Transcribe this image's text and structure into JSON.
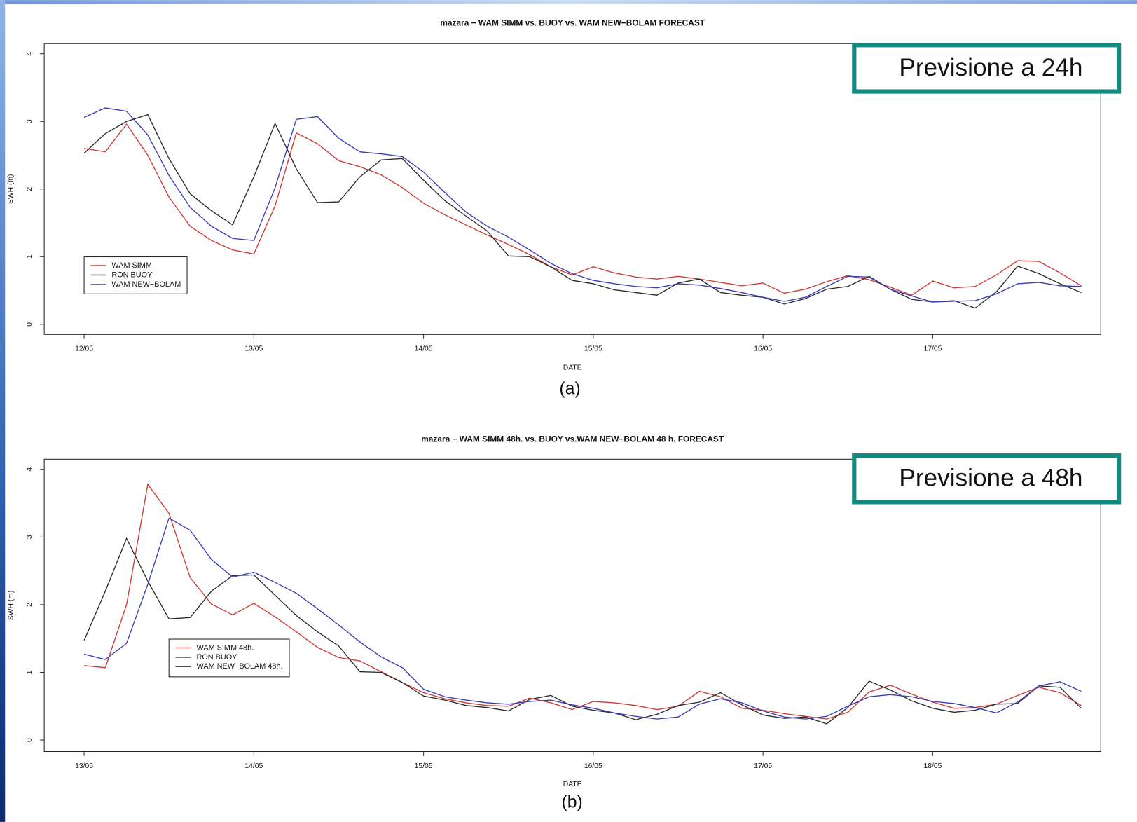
{
  "chart_data": [
    {
      "type": "line",
      "title": "mazara − WAM SIMM  vs. BUOY vs. WAM NEW−BOLAM FORECAST",
      "xlabel": "DATE",
      "ylabel": "SWH (m)",
      "annotation": "Previsione a 24h",
      "caption": "(a)",
      "x": [
        0,
        0.125,
        0.25,
        0.375,
        0.5,
        0.625,
        0.75,
        0.875,
        1,
        1.125,
        1.25,
        1.375,
        1.5,
        1.625,
        1.75,
        1.875,
        2,
        2.125,
        2.25,
        2.375,
        2.5,
        2.625,
        2.75,
        2.875,
        3,
        3.125,
        3.25,
        3.375,
        3.5,
        3.625,
        3.75,
        3.875,
        4,
        4.125,
        4.25,
        4.375,
        4.5,
        4.625,
        4.75,
        4.875,
        5,
        5.125,
        5.25,
        5.375,
        5.5,
        5.625,
        5.75,
        5.875
      ],
      "xlim": [
        -0.235,
        5.99
      ],
      "xticks": [
        {
          "value": 0,
          "label": "12/05"
        },
        {
          "value": 1,
          "label": "13/05"
        },
        {
          "value": 2,
          "label": "14/05"
        },
        {
          "value": 3,
          "label": "15/05"
        },
        {
          "value": 4,
          "label": "16/05"
        },
        {
          "value": 5,
          "label": "17/05"
        }
      ],
      "ylim": [
        -0.15,
        4.15
      ],
      "yticks": [
        0,
        1,
        2,
        3,
        4
      ],
      "legend": "left",
      "series": [
        {
          "name": "WAM SIMM",
          "color": "#cc3a35",
          "values": [
            2.6,
            2.55,
            2.96,
            2.5,
            1.88,
            1.45,
            1.24,
            1.1,
            1.04,
            1.75,
            2.83,
            2.67,
            2.42,
            2.33,
            2.21,
            2.02,
            1.79,
            1.62,
            1.47,
            1.32,
            1.18,
            1.03,
            0.85,
            0.73,
            0.85,
            0.76,
            0.7,
            0.67,
            0.71,
            0.67,
            0.62,
            0.57,
            0.61,
            0.46,
            0.52,
            0.63,
            0.72,
            0.66,
            0.55,
            0.43,
            0.64,
            0.54,
            0.56,
            0.73,
            0.94,
            0.93,
            0.76,
            0.57
          ]
        },
        {
          "name": "RON BUOY",
          "color": "#2b2b2b",
          "values": [
            2.53,
            2.82,
            3.0,
            3.1,
            2.45,
            1.93,
            1.68,
            1.47,
            2.18,
            2.97,
            2.3,
            1.8,
            1.81,
            2.18,
            2.43,
            2.45,
            2.13,
            1.83,
            1.6,
            1.38,
            1.01,
            1.0,
            0.85,
            0.65,
            0.6,
            0.51,
            0.47,
            0.43,
            0.61,
            0.67,
            0.47,
            0.43,
            0.4,
            0.3,
            0.38,
            0.52,
            0.56,
            0.71,
            0.52,
            0.37,
            0.33,
            0.35,
            0.24,
            0.48,
            0.86,
            0.75,
            0.6,
            0.47
          ]
        },
        {
          "name": "WAM NEW−BOLAM",
          "color": "#3a3ab5",
          "values": [
            3.06,
            3.2,
            3.15,
            2.8,
            2.2,
            1.73,
            1.45,
            1.27,
            1.24,
            2.02,
            3.03,
            3.07,
            2.75,
            2.55,
            2.52,
            2.48,
            2.25,
            1.95,
            1.66,
            1.45,
            1.29,
            1.1,
            0.9,
            0.75,
            0.65,
            0.6,
            0.56,
            0.54,
            0.6,
            0.58,
            0.53,
            0.47,
            0.4,
            0.34,
            0.4,
            0.56,
            0.71,
            0.7,
            0.52,
            0.42,
            0.33,
            0.34,
            0.35,
            0.45,
            0.6,
            0.62,
            0.57,
            0.56
          ]
        }
      ]
    },
    {
      "type": "line",
      "title": "mazara − WAM SIMM 48h. vs. BUOY vs.WAM NEW−BOLAM 48 h. FORECAST",
      "xlabel": "DATE",
      "ylabel": "SWH (m)",
      "annotation": "Previsione a 48h",
      "caption": "(b)",
      "x": [
        0,
        0.125,
        0.25,
        0.375,
        0.5,
        0.625,
        0.75,
        0.875,
        1,
        1.125,
        1.25,
        1.375,
        1.5,
        1.625,
        1.75,
        1.875,
        2,
        2.125,
        2.25,
        2.375,
        2.5,
        2.625,
        2.75,
        2.875,
        3,
        3.125,
        3.25,
        3.375,
        3.5,
        3.625,
        3.75,
        3.875,
        4,
        4.125,
        4.25,
        4.375,
        4.5,
        4.625,
        4.75,
        4.875,
        5,
        5.125,
        5.25,
        5.375,
        5.5,
        5.625,
        5.75,
        5.875
      ],
      "xlim": [
        -0.235,
        5.99
      ],
      "xticks": [
        {
          "value": 0,
          "label": "13/05"
        },
        {
          "value": 1,
          "label": "14/05"
        },
        {
          "value": 2,
          "label": "15/05"
        },
        {
          "value": 3,
          "label": "16/05"
        },
        {
          "value": 4,
          "label": "17/05"
        },
        {
          "value": 5,
          "label": "18/05"
        }
      ],
      "ylim": [
        -0.17,
        4.15
      ],
      "yticks": [
        0,
        1,
        2,
        3,
        4
      ],
      "legend": "left",
      "series": [
        {
          "name": "WAM SIMM 48h.",
          "color": "#cc3a35",
          "values": [
            1.1,
            1.07,
            2.0,
            3.78,
            3.35,
            2.4,
            2.01,
            1.85,
            2.02,
            1.82,
            1.6,
            1.37,
            1.22,
            1.17,
            1.01,
            0.85,
            0.7,
            0.61,
            0.55,
            0.51,
            0.5,
            0.62,
            0.55,
            0.45,
            0.57,
            0.55,
            0.51,
            0.45,
            0.5,
            0.72,
            0.64,
            0.47,
            0.44,
            0.39,
            0.35,
            0.31,
            0.41,
            0.71,
            0.81,
            0.68,
            0.56,
            0.47,
            0.48,
            0.53,
            0.66,
            0.78,
            0.7,
            0.51
          ]
        },
        {
          "name": "RON BUOY",
          "color": "#2b2b2b",
          "values": [
            1.47,
            2.2,
            2.98,
            2.35,
            1.79,
            1.81,
            2.2,
            2.43,
            2.44,
            2.14,
            1.84,
            1.6,
            1.39,
            1.01,
            1.0,
            0.85,
            0.65,
            0.59,
            0.51,
            0.48,
            0.43,
            0.6,
            0.66,
            0.5,
            0.44,
            0.4,
            0.3,
            0.38,
            0.51,
            0.56,
            0.7,
            0.52,
            0.37,
            0.32,
            0.34,
            0.24,
            0.48,
            0.87,
            0.74,
            0.58,
            0.47,
            0.41,
            0.44,
            0.53,
            0.54,
            0.8,
            0.78,
            0.47
          ]
        },
        {
          "name": "WAM NEW−BOLAM 48h.",
          "color": "#3a3ab5",
          "values": [
            1.27,
            1.19,
            1.43,
            2.3,
            3.28,
            3.1,
            2.67,
            2.41,
            2.48,
            2.33,
            2.17,
            1.94,
            1.7,
            1.45,
            1.23,
            1.07,
            0.75,
            0.64,
            0.59,
            0.55,
            0.53,
            0.57,
            0.59,
            0.52,
            0.47,
            0.4,
            0.35,
            0.31,
            0.34,
            0.53,
            0.61,
            0.55,
            0.43,
            0.34,
            0.31,
            0.35,
            0.5,
            0.64,
            0.67,
            0.64,
            0.57,
            0.54,
            0.48,
            0.4,
            0.56,
            0.8,
            0.86,
            0.72
          ]
        }
      ]
    }
  ]
}
